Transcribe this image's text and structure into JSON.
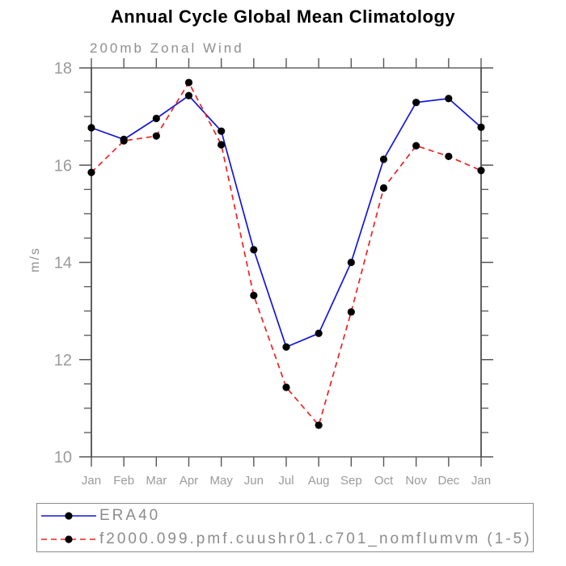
{
  "title": "Annual Cycle Global Mean Climatology",
  "chart_data": {
    "type": "line",
    "title": "Annual Cycle Global Mean Climatology",
    "subtitle": "200mb Zonal Wind",
    "ylabel": "m/s",
    "xlabel": "",
    "categories": [
      "Jan",
      "Feb",
      "Mar",
      "Apr",
      "May",
      "Jun",
      "Jul",
      "Aug",
      "Sep",
      "Oct",
      "Nov",
      "Dec",
      "Jan"
    ],
    "ylim": [
      10,
      18
    ],
    "ytick_major": [
      10,
      12,
      14,
      16,
      18
    ],
    "ytick_minor_step": 0.5,
    "grid": false,
    "legend_position": "bottom-box",
    "marker_color": "#000000",
    "series": [
      {
        "name": "ERA40",
        "color": "#1414dd",
        "line_style": "solid",
        "marker": "filled-circle",
        "values": [
          16.77,
          16.53,
          16.96,
          17.43,
          16.7,
          14.26,
          12.26,
          12.54,
          14.0,
          16.12,
          17.29,
          17.37,
          16.78
        ]
      },
      {
        "name": "f2000.099.pmf.cuushr01.c701_nomflumvm (1-5)",
        "color": "#ee2222",
        "line_style": "dashed",
        "marker": "filled-circle",
        "values": [
          15.85,
          16.5,
          16.6,
          17.7,
          16.42,
          13.32,
          11.43,
          10.65,
          12.98,
          15.53,
          16.4,
          16.18,
          15.89
        ]
      }
    ]
  }
}
